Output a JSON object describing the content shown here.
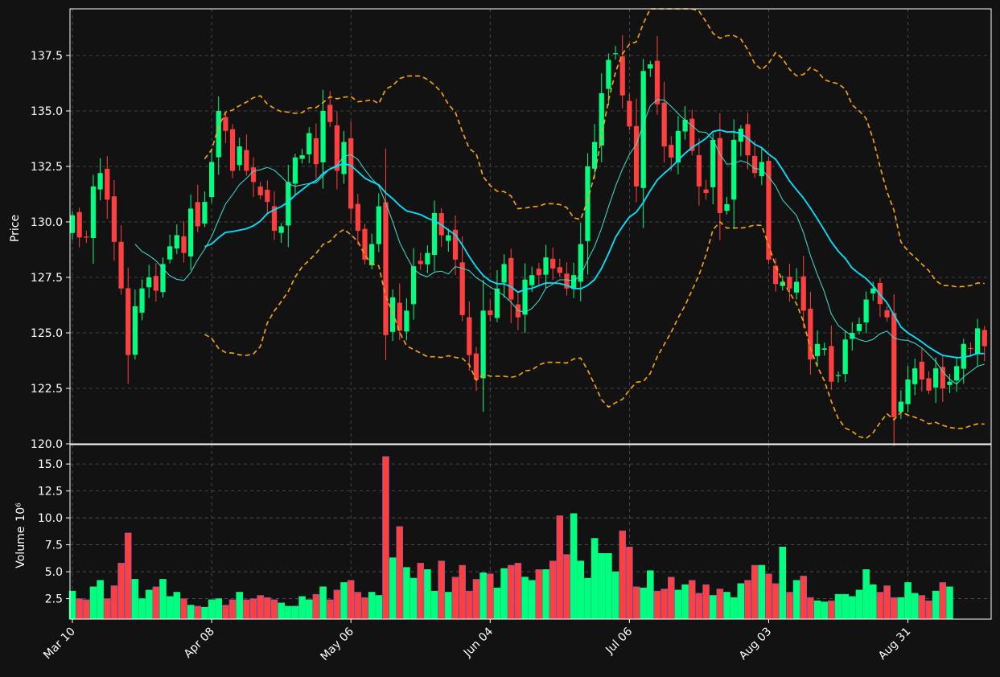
{
  "colors": {
    "background": "#121212",
    "up": "#00ff80",
    "down": "#ff4040",
    "ma_short": "#40e0d0",
    "ma_long": "#00e5ff",
    "band": "#ffa500",
    "grid": "#555555",
    "axis": "#ffffff"
  },
  "chart_data": {
    "type": "candlestick",
    "price_panel": {
      "ylabel": "Price",
      "ylim": [
        120.0,
        139.6
      ],
      "yticks": [
        "120.0",
        "122.5",
        "125.0",
        "127.5",
        "130.0",
        "132.5",
        "135.0",
        "137.5"
      ],
      "grid": true
    },
    "volume_panel": {
      "ylabel": "Volume",
      "ylabel_exponent": "10⁶",
      "ylim": [
        0.6,
        16.8
      ],
      "yticks": [
        "2.5",
        "5.0",
        "7.5",
        "10.0",
        "12.5",
        "15.0"
      ],
      "grid": true
    },
    "xtick_labels": [
      {
        "index": 0,
        "label": "Mar 10"
      },
      {
        "index": 20,
        "label": "Apr 08"
      },
      {
        "index": 40,
        "label": "May 06"
      },
      {
        "index": 60,
        "label": "Jun 04"
      },
      {
        "index": 80,
        "label": "Jul 06"
      },
      {
        "index": 100,
        "label": "Aug 03"
      },
      {
        "index": 120,
        "label": "Aug 31"
      }
    ],
    "closes": [
      130.3,
      129.3,
      129.3,
      131.6,
      132.2,
      131.0,
      129.1,
      127.0,
      124.0,
      126.2,
      127.0,
      127.5,
      126.9,
      128.1,
      128.9,
      129.4,
      128.6,
      130.6,
      129.8,
      130.9,
      132.7,
      135.0,
      134.1,
      132.3,
      133.4,
      132.3,
      131.8,
      131.2,
      130.9,
      129.6,
      129.8,
      131.8,
      132.9,
      133.0,
      134.0,
      132.6,
      135.0,
      134.5,
      132.3,
      133.6,
      130.6,
      129.6,
      128.3,
      129.0,
      130.7,
      124.9,
      126.6,
      125.1,
      126.0,
      128.0,
      128.1,
      128.6,
      130.4,
      129.4,
      129.4,
      128.3,
      125.8,
      124.0,
      122.9,
      126.0,
      125.8,
      127.0,
      128.1,
      126.5,
      125.7,
      127.4,
      127.6,
      127.6,
      128.4,
      127.9,
      127.7,
      127.0,
      127.6,
      129.0,
      132.5,
      133.6,
      135.8,
      137.3,
      137.6,
      135.7,
      134.3,
      131.6,
      136.8,
      137.1,
      135.3,
      133.4,
      132.9,
      134.1,
      134.6,
      133.2,
      131.6,
      131.3,
      133.7,
      130.4,
      130.8,
      133.7,
      134.2,
      133.0,
      132.2,
      132.7,
      128.3,
      127.2,
      127.3,
      127.0,
      127.3,
      126.0,
      123.8,
      124.5,
      124.3,
      122.8,
      123.1,
      124.7,
      125.0,
      125.4,
      126.5,
      127.0,
      126.3,
      125.7,
      121.2,
      121.9,
      122.9,
      123.4,
      122.9,
      122.4,
      123.4,
      122.5,
      122.8,
      123.5,
      124.5,
      124.3,
      125.2,
      124.4
    ],
    "volumes": [
      3.2,
      2.5,
      2.4,
      3.6,
      4.2,
      2.5,
      3.7,
      5.8,
      8.6,
      4.3,
      2.5,
      3.3,
      3.6,
      4.3,
      2.7,
      3.1,
      2.5,
      1.9,
      1.8,
      1.7,
      2.4,
      2.5,
      1.9,
      2.4,
      3.1,
      2.4,
      2.5,
      2.8,
      2.6,
      2.4,
      2.1,
      1.8,
      1.8,
      2.7,
      2.4,
      2.9,
      3.6,
      2.4,
      3.3,
      4.0,
      4.2,
      3.1,
      2.6,
      3.1,
      2.8,
      15.7,
      6.3,
      9.2,
      5.4,
      4.4,
      5.8,
      5.2,
      3.2,
      6.0,
      3.1,
      4.5,
      5.6,
      3.2,
      4.3,
      4.9,
      4.8,
      3.5,
      5.3,
      5.6,
      5.8,
      4.5,
      4.2,
      5.2,
      5.2,
      6.0,
      10.2,
      6.6,
      10.4,
      6.0,
      4.4,
      8.1,
      6.7,
      6.7,
      5.0,
      8.8,
      7.3,
      3.6,
      3.5,
      5.1,
      3.2,
      3.4,
      4.5,
      3.3,
      3.8,
      4.2,
      3.0,
      3.8,
      2.8,
      3.4,
      3.1,
      2.6,
      3.9,
      4.2,
      5.6,
      5.6,
      4.8,
      3.9,
      7.3,
      3.1,
      4.2,
      4.6,
      2.6,
      2.3,
      2.2,
      2.3,
      2.9,
      2.9,
      2.7,
      3.3,
      5.2,
      3.8,
      3.1,
      3.7,
      2.6,
      2.6,
      4.0,
      3.0,
      2.8,
      2.3,
      3.2,
      4.0,
      3.6
    ],
    "series": [
      {
        "kind": "moving_average_short",
        "window": 10
      },
      {
        "kind": "moving_average_long",
        "window": 20
      },
      {
        "kind": "bollinger_band_upper",
        "window": 20,
        "k": 2
      },
      {
        "kind": "bollinger_band_lower",
        "window": 20,
        "k": 2
      }
    ]
  }
}
